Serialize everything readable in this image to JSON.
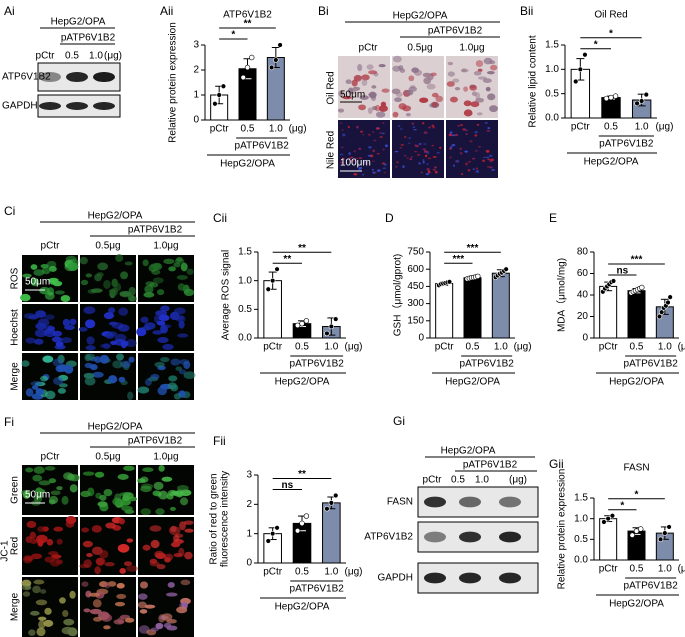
{
  "panels": {
    "Ai": {
      "label": "Ai",
      "header": [
        "HepG2/OPA",
        "pATP6V1B2"
      ],
      "columns": [
        "pCtr",
        "0.5",
        "1.0"
      ],
      "unit": "(μg)",
      "rows": [
        "ATP6V1B2",
        "GAPDH"
      ]
    },
    "Bi": {
      "label": "Bi",
      "header": [
        "HepG2/OPA",
        "pATP6V1B2"
      ],
      "columns": [
        "pCtr",
        "0.5μg",
        "1.0μg"
      ],
      "rows": [
        "Oil Red",
        "Nile Red"
      ],
      "scales": [
        "50μm",
        "100μm"
      ]
    },
    "Ci": {
      "label": "Ci",
      "header": [
        "HepG2/OPA",
        "pATP6V1B2"
      ],
      "columns": [
        "pCtr",
        "0.5μg",
        "1.0μg"
      ],
      "rows": [
        "ROS",
        "Hoechst",
        "Merge"
      ],
      "scales": [
        "50μm"
      ]
    },
    "Fi": {
      "label": "Fi",
      "header": [
        "HepG2/OPA",
        "pATP6V1B2"
      ],
      "columns": [
        "pCtr",
        "0.5μg",
        "1.0μg"
      ],
      "rows": [
        "Green",
        "Red",
        "Merge"
      ],
      "side": "JC-1",
      "scales": [
        "50μm"
      ]
    },
    "Gi": {
      "label": "Gi",
      "header": [
        "HepG2/OPA",
        "pATP6V1B2"
      ],
      "columns": [
        "pCtr",
        "0.5",
        "1.0"
      ],
      "unit": "(μg)",
      "rows": [
        "FASN",
        "ATP6V1B2",
        "GAPDH"
      ]
    }
  },
  "chart_data": [
    {
      "type": "bar",
      "panel": "Aii",
      "title": "ATP6V1B2",
      "y_label": "Relative protein expression",
      "categories": [
        "pCtr",
        "0.5",
        "1.0"
      ],
      "unit": "(μg)",
      "group_labels": [
        "pATP6V1B2",
        "HepG2/OPA"
      ],
      "values": [
        1.0,
        2.05,
        2.5
      ],
      "errors": [
        0.35,
        0.4,
        0.4
      ],
      "points": [
        [
          0.65,
          1.0,
          1.35
        ],
        [
          1.7,
          2.1,
          2.5
        ],
        [
          2.1,
          2.4,
          3.0
        ]
      ],
      "bar_colors": [
        "#ffffff",
        "#000000",
        "#7d8cab"
      ],
      "ylim": [
        0,
        3
      ],
      "yticks": [
        0,
        1,
        2,
        3
      ],
      "significance": [
        "*",
        "**"
      ]
    },
    {
      "type": "bar",
      "panel": "Bii",
      "title": "Oil Red",
      "y_label": "Relative lipid content",
      "categories": [
        "pCtr",
        "0.5",
        "1.0"
      ],
      "unit": "(μg)",
      "group_labels": [
        "pATP6V1B2",
        "HepG2/OPA"
      ],
      "values": [
        1.0,
        0.42,
        0.37
      ],
      "errors": [
        0.22,
        0.03,
        0.12
      ],
      "points": [
        [
          0.75,
          1.0,
          1.3
        ],
        [
          0.4,
          0.42,
          0.45
        ],
        [
          0.3,
          0.35,
          0.48
        ]
      ],
      "bar_colors": [
        "#ffffff",
        "#000000",
        "#7d8cab"
      ],
      "ylim": [
        0,
        1.5
      ],
      "yticks": [
        {
          "value": 0,
          "label": "0.0"
        },
        0.5,
        {
          "value": 1,
          "label": "1.0"
        },
        1.5
      ],
      "significance": [
        "*",
        "*"
      ]
    },
    {
      "type": "bar",
      "panel": "Cii",
      "y_label": "Average ROS signal",
      "categories": [
        "pCtr",
        "0.5",
        "1.0"
      ],
      "unit": "(μg)",
      "group_labels": [
        "pATP6V1B2",
        "HepG2/OPA"
      ],
      "values": [
        1.0,
        0.25,
        0.2
      ],
      "errors": [
        0.15,
        0.05,
        0.15
      ],
      "points": [
        [
          0.85,
          1.0,
          1.2
        ],
        [
          0.22,
          0.25,
          0.3
        ],
        [
          0.08,
          0.2,
          0.33
        ]
      ],
      "bar_colors": [
        "#ffffff",
        "#000000",
        "#7d8cab"
      ],
      "ylim": [
        0,
        1.5
      ],
      "yticks": [
        {
          "value": 0,
          "label": "0.0"
        },
        0.5,
        {
          "value": 1,
          "label": "1.0"
        },
        1.5
      ],
      "significance": [
        "**",
        "**"
      ]
    },
    {
      "type": "bar",
      "panel": "D",
      "y_label": "GSH（μmol/gprot)",
      "categories": [
        "pCtr",
        "0.5",
        "1.0"
      ],
      "unit": "(μg)",
      "group_labels": [
        "pATP6V1B2",
        "HepG2/OPA"
      ],
      "values": [
        475,
        525,
        565
      ],
      "errors": [
        15,
        12,
        30
      ],
      "points": [
        [
          460,
          470,
          475,
          480,
          485,
          490
        ],
        [
          515,
          520,
          525,
          528,
          532,
          538
        ],
        [
          530,
          545,
          560,
          570,
          585,
          600
        ]
      ],
      "bar_colors": [
        "#ffffff",
        "#000000",
        "#7d8cab"
      ],
      "ylim": [
        0,
        750
      ],
      "yticks": [
        0,
        150,
        300,
        450,
        600,
        750
      ],
      "significance": [
        "***",
        "***"
      ]
    },
    {
      "type": "bar",
      "panel": "E",
      "y_label": "MDA（μmol/mg)",
      "categories": [
        "pCtr",
        "0.5",
        "1.0"
      ],
      "unit": "(μg)",
      "group_labels": [
        "pATP6V1B2",
        "HepG2/OPA"
      ],
      "values": [
        48,
        44,
        29
      ],
      "errors": [
        4,
        2,
        7
      ],
      "points": [
        [
          43,
          46,
          48,
          50,
          52,
          53
        ],
        [
          42,
          43,
          44,
          45,
          46,
          47
        ],
        [
          20,
          24,
          28,
          30,
          33,
          38
        ]
      ],
      "bar_colors": [
        "#ffffff",
        "#000000",
        "#7d8cab"
      ],
      "ylim": [
        0,
        80
      ],
      "yticks": [
        0,
        20,
        40,
        60,
        80
      ],
      "significance": [
        "ns",
        "***"
      ]
    },
    {
      "type": "bar",
      "panel": "Fii",
      "y_label": [
        "Ratio of red to green",
        "fluorescence intensity"
      ],
      "categories": [
        "pCtr",
        "0.5",
        "1.0"
      ],
      "unit": "(μg)",
      "group_labels": [
        "pATP6V1B2",
        "HepG2/OPA"
      ],
      "values": [
        1.0,
        1.35,
        2.05
      ],
      "errors": [
        0.2,
        0.25,
        0.2
      ],
      "points": [
        [
          0.75,
          1.0,
          1.2
        ],
        [
          1.1,
          1.35,
          1.6
        ],
        [
          1.85,
          2.05,
          2.3
        ]
      ],
      "bar_colors": [
        "#ffffff",
        "#000000",
        "#7d8cab"
      ],
      "ylim": [
        0,
        3
      ],
      "yticks": [
        0,
        1,
        2,
        3
      ],
      "significance": [
        "ns",
        "**"
      ]
    },
    {
      "type": "bar",
      "panel": "Gii",
      "title": "FASN",
      "y_label": "Relative protein expression",
      "categories": [
        "pCtr",
        "0.5",
        "1.0"
      ],
      "unit": "(μg)",
      "group_labels": [
        "pATP6V1B2",
        "HepG2/OPA"
      ],
      "values": [
        1.0,
        0.7,
        0.65
      ],
      "errors": [
        0.07,
        0.08,
        0.15
      ],
      "points": [
        [
          0.92,
          1.0,
          1.07
        ],
        [
          0.6,
          0.7,
          0.75
        ],
        [
          0.5,
          0.65,
          0.8
        ]
      ],
      "bar_colors": [
        "#ffffff",
        "#000000",
        "#7d8cab"
      ],
      "ylim": [
        0,
        1.5
      ],
      "yticks": [
        {
          "value": 0,
          "label": "0.0"
        },
        0.5,
        {
          "value": 1,
          "label": "1.0"
        },
        1.5
      ],
      "significance": [
        "*",
        "*"
      ]
    }
  ]
}
